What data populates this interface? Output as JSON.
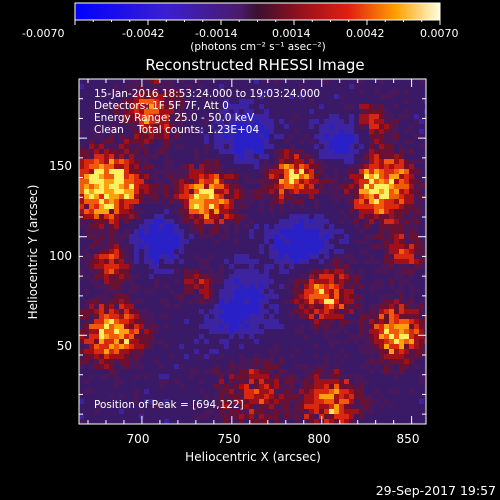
{
  "colorbar": {
    "ticks": [
      "-0.0070",
      "-0.0042",
      "-0.0014",
      "0.0014",
      "0.0042",
      "0.0070"
    ],
    "unit_label": "(photons cm⁻² s⁻¹ asec⁻²)",
    "range": [
      -0.007,
      0.007
    ]
  },
  "image": {
    "title": "Reconstructed RHESSI Image",
    "info_lines": [
      "15-Jan-2016 18:53:24.000 to 19:03:24.000",
      "Detectors: 1F 5F 7F, Att 0",
      "Energy Range: 25.0 - 50.0 keV",
      "Clean    Total counts: 1.23E+04"
    ],
    "peak_text": "Position of Peak = [694,122]",
    "xlabel": "Heliocentric X (arcsec)",
    "ylabel": "Heliocentric Y (arcsec)",
    "x_ticks": [
      "700",
      "750",
      "800",
      "850"
    ],
    "y_ticks": [
      "50",
      "100",
      "150"
    ],
    "x_range": [
      665,
      858
    ],
    "y_range": [
      5,
      180
    ]
  },
  "footer": {
    "timestamp": "29-Sep-2017 19:57"
  },
  "colors": {
    "background": "#000000",
    "text": "#ffffff"
  }
}
